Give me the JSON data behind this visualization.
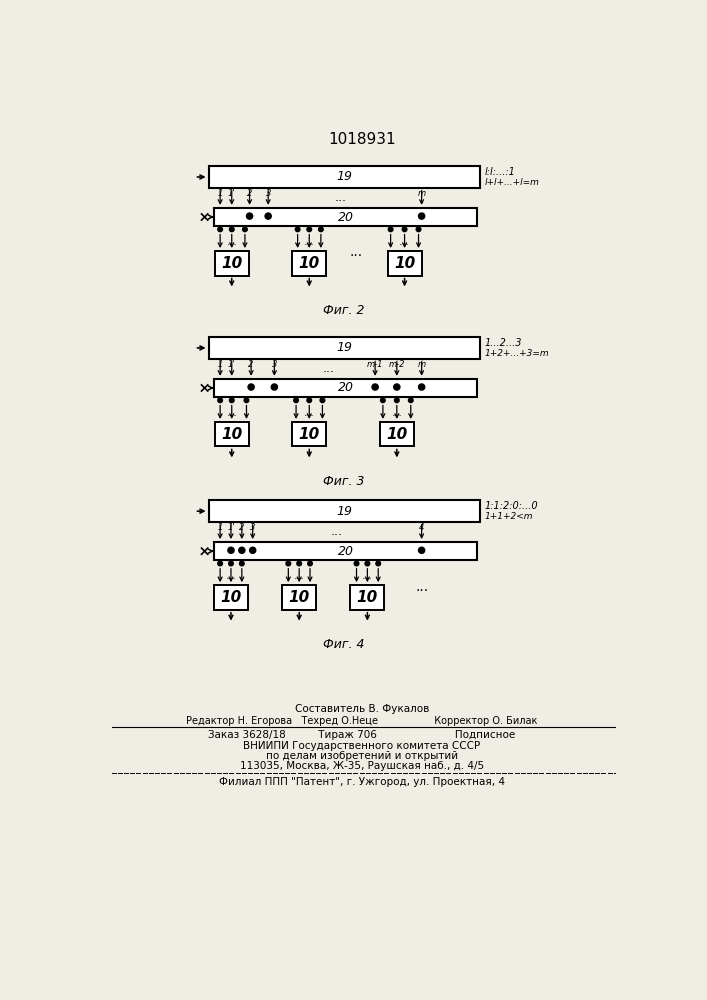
{
  "title": "1018931",
  "bg_color": "#f0ede5",
  "fig2_note1": "l:l:...:1",
  "fig2_note2": "l+l+...+l=m",
  "fig3_note1": "1...2...3",
  "fig3_note2": "1+2+...+3=m",
  "fig4_note1": "1:1:2:0:...0",
  "fig4_note2": "1+1+2<m",
  "fig2_caption": "Фиг. 2",
  "fig3_caption": "Фиг. 3",
  "fig4_caption": "Фиг. 4",
  "footer_composer": "Составитель В. Фукалов",
  "footer_staff": "Редактор Н. Егорова   Техред О.Неце                  Корректор О. Билак",
  "footer_order": "Заказ 3628/18          Тираж 706                        Подписное",
  "footer_org1": "ВНИИПИ Государственного комитета СССР",
  "footer_org2": "по делам изобретений и открытий",
  "footer_addr": "113035, Москва, Ж-35, Раушская наб., д. 4/5",
  "footer_branch": "Филиал ППП \"Патент\", г. Ужгород, ул. Проектная, 4"
}
